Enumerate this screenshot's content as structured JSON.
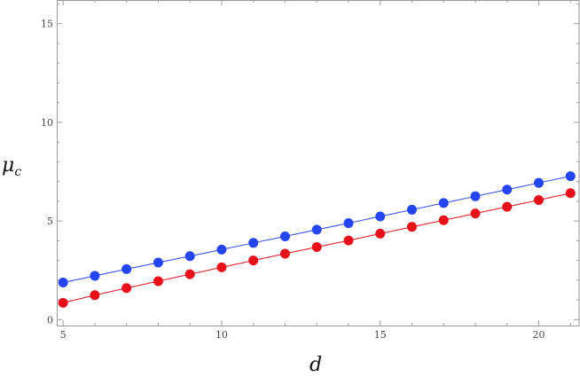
{
  "chart_data": {
    "type": "line",
    "title": "",
    "xlabel": "d",
    "ylabel_main": "μ",
    "ylabel_sub": "c",
    "xlim": [
      4.8,
      21.3
    ],
    "ylim": [
      -0.3,
      16.2
    ],
    "x_ticks": [
      5,
      10,
      15,
      20
    ],
    "y_ticks": [
      0,
      5,
      10,
      15
    ],
    "x_minor_step": 1,
    "y_minor_step": 1,
    "grid": false,
    "x": [
      5,
      6,
      7,
      8,
      9,
      10,
      11,
      12,
      13,
      14,
      15,
      16,
      17,
      18,
      19,
      20,
      21
    ],
    "series": [
      {
        "color": "#2645f2",
        "values": [
          1.88,
          2.22,
          2.56,
          2.89,
          3.22,
          3.55,
          3.89,
          4.22,
          4.56,
          4.89,
          5.23,
          5.57,
          5.91,
          6.25,
          6.59,
          6.93,
          7.27
        ]
      },
      {
        "color": "#e8101a",
        "values": [
          0.85,
          1.24,
          1.6,
          1.95,
          2.3,
          2.65,
          3.0,
          3.34,
          3.68,
          4.01,
          4.36,
          4.7,
          5.04,
          5.38,
          5.72,
          6.06,
          6.41
        ]
      }
    ]
  }
}
